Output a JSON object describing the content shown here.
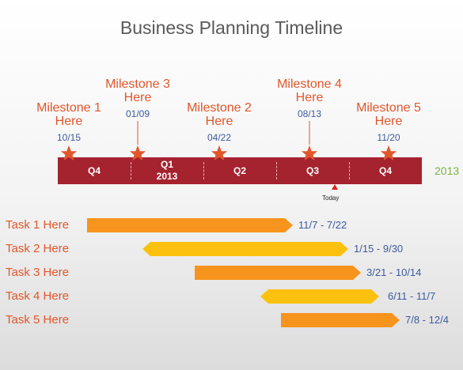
{
  "title": "Business Planning Timeline",
  "year_label": "2013",
  "today_label": "Today",
  "colors": {
    "timeline_bar": "#a5222f",
    "milestone_text": "#e0572b",
    "date_text": "#3d5a9e",
    "task_bar_orange": "#f7941d",
    "task_bar_yellow": "#fcc10e",
    "year_text": "#7db342"
  },
  "milestones": [
    {
      "label_line1": "Milestone 1",
      "label_line2": "Here",
      "date": "10/15"
    },
    {
      "label_line1": "Milestone 3",
      "label_line2": "Here",
      "date": "01/09"
    },
    {
      "label_line1": "Milestone 2",
      "label_line2": "Here",
      "date": "04/22"
    },
    {
      "label_line1": "Milestone 4",
      "label_line2": "Here",
      "date": "08/13"
    },
    {
      "label_line1": "Milestone 5",
      "label_line2": "Here",
      "date": "11/20"
    }
  ],
  "quarters": [
    "Q4",
    "Q1",
    "Q2",
    "Q3",
    "Q4"
  ],
  "q1_year": "2013",
  "tasks": [
    {
      "label": "Task 1 Here",
      "range": "11/7 - 7/22",
      "color": "#f7941d"
    },
    {
      "label": "Task 2 Here",
      "range": "1/15 - 9/30",
      "color": "#fcc10e"
    },
    {
      "label": "Task 3 Here",
      "range": "3/21 - 10/14",
      "color": "#f7941d"
    },
    {
      "label": "Task 4 Here",
      "range": "6/11 - 11/7",
      "color": "#fcc10e"
    },
    {
      "label": "Task 5 Here",
      "range": "7/8 - 12/4",
      "color": "#f7941d"
    }
  ]
}
